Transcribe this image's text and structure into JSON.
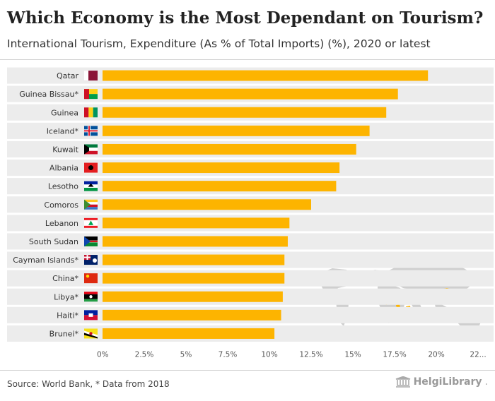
{
  "header": {
    "title": "Which Economy is the Most Dependant on Tourism?",
    "subtitle": "International Tourism, Expenditure (As % of Total Imports) (%), 2020 or latest"
  },
  "footer": {
    "source": "Source: World Bank, * Data from 2018",
    "brand_name": "HelgiLibrary",
    "brand_tld": "."
  },
  "chart_data": {
    "type": "bar",
    "orientation": "horizontal",
    "title": "Which Economy is the Most Dependant on Tourism?",
    "subtitle": "International Tourism, Expenditure (As % of Total Imports) (%), 2020 or latest",
    "categories": [
      "Qatar",
      "Guinea Bissau*",
      "Guinea",
      "Iceland*",
      "Kuwait",
      "Albania",
      "Lesotho",
      "Comoros",
      "Lebanon",
      "South Sudan",
      "Cayman Islands*",
      "China*",
      "Libya*",
      "Haiti*",
      "Brunei*"
    ],
    "values": [
      19.5,
      17.7,
      17.0,
      16.0,
      15.2,
      14.2,
      14.0,
      12.5,
      11.2,
      11.1,
      10.9,
      10.9,
      10.8,
      10.7,
      10.3
    ],
    "xlim": [
      0,
      22.5
    ],
    "xticks": [
      "0%",
      "2.5%",
      "5%",
      "7.5%",
      "10%",
      "12.5%",
      "15%",
      "17.5%",
      "20%",
      "22..."
    ],
    "xtick_values": [
      0,
      2.5,
      5,
      7.5,
      10,
      12.5,
      15,
      17.5,
      20,
      22.5
    ],
    "bar_color": "#fdb400",
    "band_color": "#ececec",
    "grid": false,
    "legend": "none"
  },
  "colors": {
    "bar": "#fdb400",
    "band": "#ececec",
    "map_land": "#cfcfcf",
    "map_highlight": "#fdb400",
    "text": "#333333"
  },
  "flag_icons": [
    "qatar-flag-icon",
    "guinea-bissau-flag-icon",
    "guinea-flag-icon",
    "iceland-flag-icon",
    "kuwait-flag-icon",
    "albania-flag-icon",
    "lesotho-flag-icon",
    "comoros-flag-icon",
    "lebanon-flag-icon",
    "south-sudan-flag-icon",
    "cayman-islands-flag-icon",
    "china-flag-icon",
    "libya-flag-icon",
    "haiti-flag-icon",
    "brunei-flag-icon"
  ]
}
